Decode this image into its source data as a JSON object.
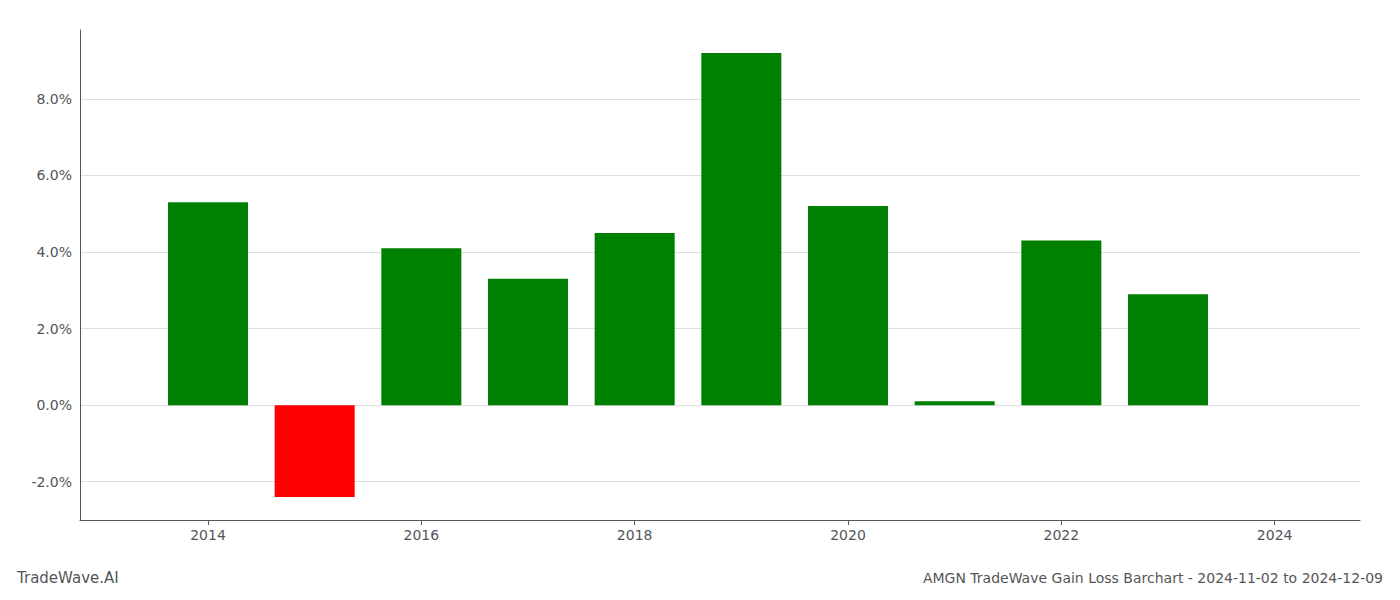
{
  "chart_data": {
    "type": "bar",
    "title": "AMGN TradeWave Gain Loss Barchart - 2024-11-02 to 2024-12-09",
    "annotations": [
      {
        "text": "TradeWave.AI"
      }
    ],
    "x": [
      2014,
      2015,
      2016,
      2017,
      2018,
      2019,
      2020,
      2021,
      2022,
      2023
    ],
    "values": [
      0.053,
      -0.024,
      0.041,
      0.033,
      0.045,
      0.092,
      0.052,
      0.001,
      0.043,
      0.029
    ],
    "colors": [
      "#008000",
      "#ff0000",
      "#008000",
      "#008000",
      "#008000",
      "#008000",
      "#008000",
      "#008000",
      "#008000",
      "#008000"
    ],
    "xlim": [
      2012.8,
      2024.8
    ],
    "xticks": [
      2014,
      2016,
      2018,
      2020,
      2022,
      2024
    ],
    "ylim": [
      -0.03,
      0.098
    ],
    "yticks": [
      {
        "value": -0.02,
        "label": "-2.0%"
      },
      {
        "value": 0.0,
        "label": "0.0%"
      },
      {
        "value": 0.02,
        "label": "2.0%"
      },
      {
        "value": 0.04,
        "label": "4.0%"
      },
      {
        "value": 0.06,
        "label": "6.0%"
      },
      {
        "value": 0.08,
        "label": "8.0%"
      }
    ],
    "grid": true
  }
}
